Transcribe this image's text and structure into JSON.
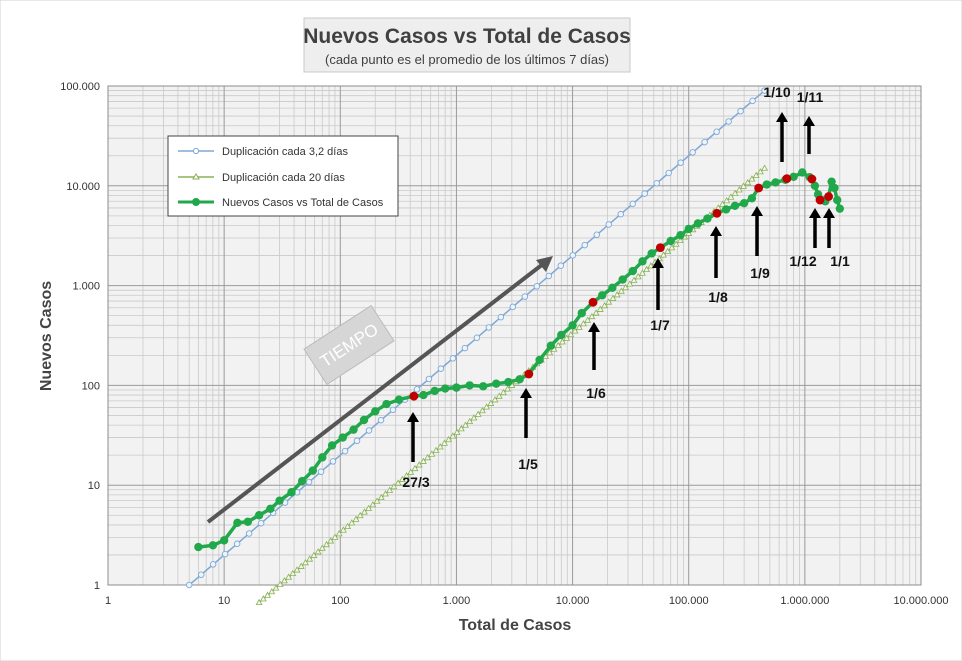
{
  "chart_data": {
    "type": "scatter",
    "title": "Nuevos Casos vs Total de Casos",
    "subtitle": "(cada punto es el promedio  de los últimos  7 días)",
    "xlabel": "Total de Casos",
    "ylabel": "Nuevos Casos",
    "x_scale": "log",
    "y_scale": "log",
    "xlim": [
      1,
      10000000
    ],
    "ylim": [
      1,
      100000
    ],
    "grid": true,
    "legend_position": "upper-left",
    "x_ticks": [
      {
        "value": 1,
        "label": "1"
      },
      {
        "value": 10,
        "label": "10"
      },
      {
        "value": 100,
        "label": "100"
      },
      {
        "value": 1000,
        "label": "1.000"
      },
      {
        "value": 10000,
        "label": "10.000"
      },
      {
        "value": 100000,
        "label": "100.000"
      },
      {
        "value": 1000000,
        "label": "1.000.000"
      },
      {
        "value": 10000000,
        "label": "10.000.000"
      }
    ],
    "y_ticks": [
      {
        "value": 1,
        "label": "1"
      },
      {
        "value": 10,
        "label": "10"
      },
      {
        "value": 100,
        "label": "100"
      },
      {
        "value": 1000,
        "label": "1.000"
      },
      {
        "value": 10000,
        "label": "10.000"
      },
      {
        "value": 100000,
        "label": "100.000"
      }
    ],
    "series": [
      {
        "name": "Duplicación cada 3,2 días",
        "color": "#7fa8d6",
        "marker": "open-circle",
        "x_range": [
          5,
          450000
        ],
        "slope": 0.2
      },
      {
        "name": "Duplicación cada 20 días",
        "color": "#8ab05a",
        "marker": "open-triangle",
        "x_range": [
          20,
          450000
        ],
        "slope": 0.0333
      },
      {
        "name": "Nuevos Casos vs Total de Casos",
        "color": "#21a84a",
        "marker": "filled-circle",
        "points": [
          [
            6,
            2.4
          ],
          [
            8,
            2.5
          ],
          [
            10,
            2.8
          ],
          [
            13,
            4.2
          ],
          [
            16,
            4.3
          ],
          [
            20,
            5.0
          ],
          [
            25,
            5.8
          ],
          [
            30,
            7.0
          ],
          [
            38,
            8.5
          ],
          [
            47,
            11
          ],
          [
            58,
            14
          ],
          [
            70,
            19
          ],
          [
            85,
            25
          ],
          [
            105,
            30
          ],
          [
            130,
            36
          ],
          [
            160,
            45
          ],
          [
            200,
            55
          ],
          [
            250,
            65
          ],
          [
            320,
            72
          ],
          [
            430,
            78
          ],
          [
            520,
            80
          ],
          [
            650,
            88
          ],
          [
            800,
            93
          ],
          [
            1000,
            95
          ],
          [
            1300,
            100
          ],
          [
            1700,
            98
          ],
          [
            2200,
            104
          ],
          [
            2800,
            108
          ],
          [
            3500,
            115
          ],
          [
            4200,
            130
          ],
          [
            5200,
            180
          ],
          [
            6500,
            250
          ],
          [
            8000,
            320
          ],
          [
            10000,
            400
          ],
          [
            12000,
            530
          ],
          [
            15000,
            680
          ],
          [
            18000,
            800
          ],
          [
            22000,
            950
          ],
          [
            27000,
            1150
          ],
          [
            33000,
            1400
          ],
          [
            40000,
            1750
          ],
          [
            48000,
            2100
          ],
          [
            57000,
            2400
          ],
          [
            70000,
            2800
          ],
          [
            85000,
            3200
          ],
          [
            100000,
            3700
          ],
          [
            120000,
            4200
          ],
          [
            145000,
            4700
          ],
          [
            175000,
            5300
          ],
          [
            210000,
            5800
          ],
          [
            250000,
            6300
          ],
          [
            300000,
            6700
          ],
          [
            350000,
            7500
          ],
          [
            400000,
            9500
          ],
          [
            470000,
            10300
          ],
          [
            560000,
            10800
          ],
          [
            680000,
            11500
          ],
          [
            800000,
            12300
          ],
          [
            950000,
            13600
          ],
          [
            1100000,
            12200
          ],
          [
            1220000,
            10000
          ],
          [
            1300000,
            8200
          ],
          [
            1400000,
            7200
          ],
          [
            1500000,
            7000
          ],
          [
            1600000,
            7800
          ],
          [
            1700000,
            11000
          ],
          [
            1800000,
            9500
          ],
          [
            1900000,
            7200
          ],
          [
            2000000,
            5900
          ]
        ]
      }
    ],
    "highlight_points": [
      {
        "label": "27/3",
        "x": 430,
        "y": 78
      },
      {
        "label": "1/5",
        "x": 4200,
        "y": 130
      },
      {
        "label": "1/6",
        "x": 15000,
        "y": 680
      },
      {
        "label": "1/7",
        "x": 57000,
        "y": 2400
      },
      {
        "label": "1/8",
        "x": 175000,
        "y": 5300
      },
      {
        "label": "1/9",
        "x": 400000,
        "y": 9500
      },
      {
        "label": "1/10",
        "x": 700000,
        "y": 11800
      },
      {
        "label": "1/11",
        "x": 1150000,
        "y": 11700
      },
      {
        "label": "1/12",
        "x": 1350000,
        "y": 7200
      },
      {
        "label": "1/1",
        "x": 1600000,
        "y": 7800
      }
    ],
    "annotations": {
      "trend_label": "TIEMPO",
      "highlight_color": "#c00000"
    }
  }
}
